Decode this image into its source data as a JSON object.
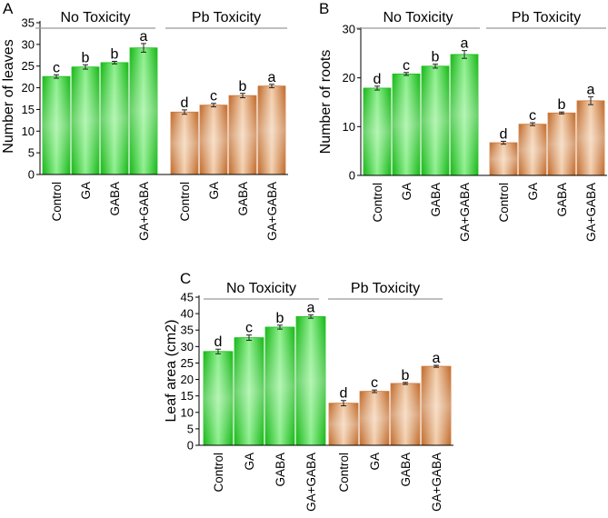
{
  "figure": {
    "panels": [
      "A",
      "B",
      "C"
    ]
  },
  "colors": {
    "no_toxicity_edge": "#18b818",
    "no_toxicity_mid": "#8ef08e",
    "no_toxicity_side": "#20c020",
    "pb_toxicity_edge": "#c06a2a",
    "pb_toxicity_mid": "#f3cfae",
    "pb_toxicity_side": "#cf7a3c",
    "axis": "#000000",
    "group_line": "#999999"
  },
  "chart_data": [
    {
      "type": "bar",
      "panel": "A",
      "ylabel": "Number of leaves",
      "ylim": [
        0,
        35
      ],
      "yticks": [
        0,
        5,
        10,
        15,
        20,
        25,
        30,
        35
      ],
      "groups": [
        "No Toxicity",
        "Pb Toxicity"
      ],
      "categories": [
        "Control",
        "GA",
        "GABA",
        "GA+GABA"
      ],
      "series": [
        {
          "name": "No Toxicity",
          "values": [
            22.6,
            24.8,
            25.8,
            29.2
          ],
          "errors": [
            0.4,
            0.5,
            0.3,
            1.0
          ],
          "letters": [
            "c",
            "b",
            "b",
            "a"
          ]
        },
        {
          "name": "Pb Toxicity",
          "values": [
            14.4,
            16.0,
            18.2,
            20.4
          ],
          "errors": [
            0.5,
            0.4,
            0.5,
            0.4
          ],
          "letters": [
            "d",
            "c",
            "b",
            "a"
          ]
        }
      ]
    },
    {
      "type": "bar",
      "panel": "B",
      "ylabel": "Number of roots",
      "ylim": [
        0,
        30
      ],
      "yticks": [
        0,
        10,
        20,
        30
      ],
      "groups": [
        "No Toxicity",
        "Pb Toxicity"
      ],
      "categories": [
        "Control",
        "GA",
        "GABA",
        "GA+GABA"
      ],
      "series": [
        {
          "name": "No Toxicity",
          "values": [
            17.9,
            20.8,
            22.4,
            24.8
          ],
          "errors": [
            0.4,
            0.3,
            0.4,
            0.8
          ],
          "letters": [
            "d",
            "c",
            "b",
            "a"
          ]
        },
        {
          "name": "Pb Toxicity",
          "values": [
            6.7,
            10.5,
            12.8,
            15.3
          ],
          "errors": [
            0.3,
            0.3,
            0.2,
            0.8
          ],
          "letters": [
            "d",
            "c",
            "b",
            "a"
          ]
        }
      ]
    },
    {
      "type": "bar",
      "panel": "C",
      "ylabel": "Leaf area (cm2)",
      "ylim": [
        0,
        45
      ],
      "yticks": [
        0,
        5,
        10,
        15,
        20,
        25,
        30,
        35,
        40,
        45
      ],
      "groups": [
        "No Toxicity",
        "Pb Toxicity"
      ],
      "categories": [
        "Control",
        "GA",
        "GABA",
        "GA+GABA"
      ],
      "series": [
        {
          "name": "No Toxicity",
          "values": [
            28.5,
            32.7,
            35.9,
            39.1
          ],
          "errors": [
            0.7,
            0.8,
            0.6,
            0.5
          ],
          "letters": [
            "d",
            "c",
            "b",
            "a"
          ]
        },
        {
          "name": "Pb Toxicity",
          "values": [
            12.8,
            16.4,
            18.8,
            24.0
          ],
          "errors": [
            0.8,
            0.4,
            0.3,
            0.3
          ],
          "letters": [
            "d",
            "c",
            "b",
            "a"
          ]
        }
      ]
    }
  ]
}
